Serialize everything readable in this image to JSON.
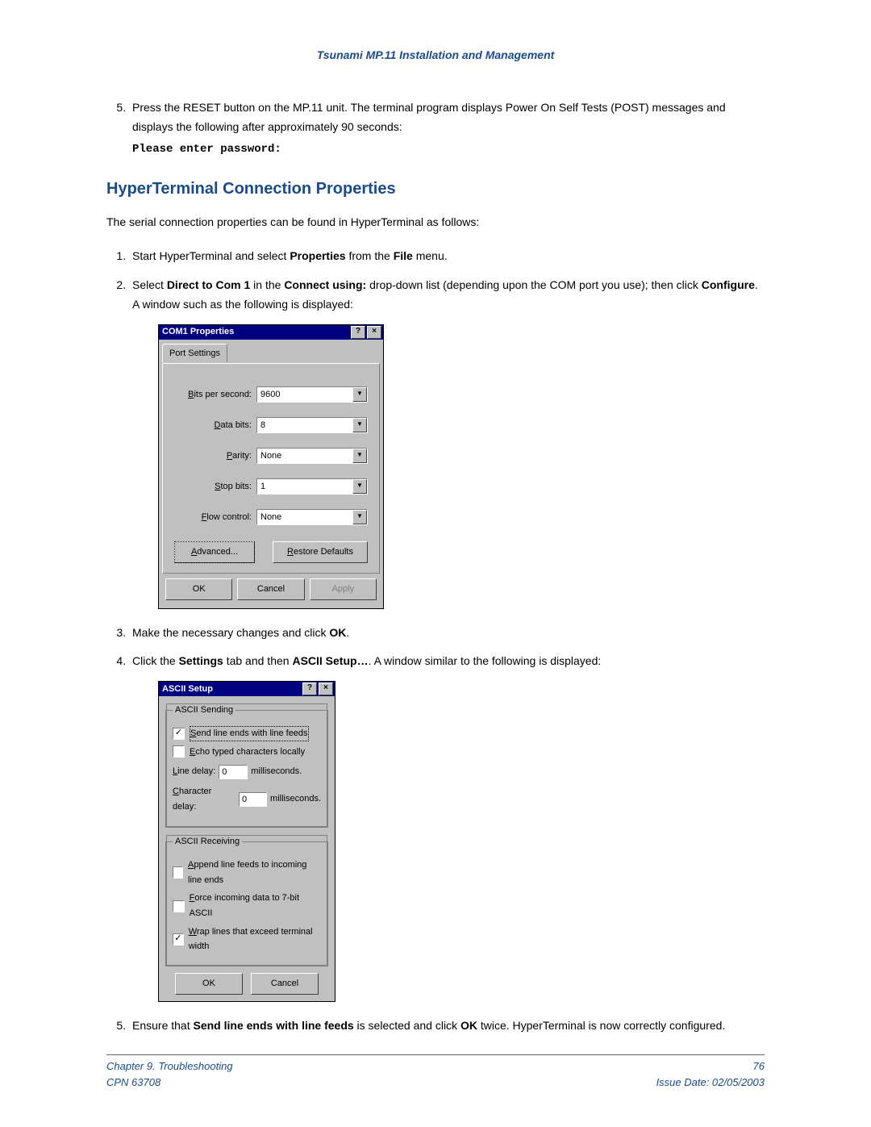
{
  "header": {
    "title": "Tsunami MP.11 Installation and Management"
  },
  "step5a": {
    "text_a": "Press the RESET button on the MP.11 unit.  The terminal program displays Power On Self Tests (POST) messages and displays the following after approximately 90 seconds:",
    "mono": "Please enter password:"
  },
  "section_heading": "HyperTerminal Connection Properties",
  "lead": "The serial connection properties can be found in HyperTerminal as follows:",
  "step1": {
    "a": "Start HyperTerminal and select ",
    "b": "Properties",
    "c": " from the ",
    "d": "File",
    "e": " menu."
  },
  "step2": {
    "a": "Select ",
    "b": "Direct to Com 1",
    "c": " in the ",
    "d": "Connect using:",
    "e": " drop-down list (depending upon the COM port you use); then click ",
    "f": "Configure",
    "g": ".  A window such as the following is displayed:"
  },
  "dlg1": {
    "title": "COM1 Properties",
    "help_glyph": "?",
    "close_glyph": "×",
    "tab": "Port Settings",
    "fields": {
      "bps": {
        "label": "Bits per second:",
        "value": "9600"
      },
      "databits": {
        "label": "Data bits:",
        "value": "8"
      },
      "parity": {
        "label": "Parity:",
        "value": "None"
      },
      "stopbits": {
        "label": "Stop bits:",
        "value": "1"
      },
      "flow": {
        "label": "Flow control:",
        "value": "None"
      }
    },
    "advanced": "Advanced...",
    "restore": "Restore Defaults",
    "ok": "OK",
    "cancel": "Cancel",
    "apply": "Apply",
    "drop_glyph": "▼"
  },
  "step3": {
    "a": "Make the necessary changes and click ",
    "b": "OK",
    "c": "."
  },
  "step4": {
    "a": "Click the ",
    "b": "Settings",
    "c": " tab and then ",
    "d": "ASCII Setup…",
    "e": ".  A window similar to the following is displayed:"
  },
  "dlg2": {
    "title": "ASCII Setup",
    "help_glyph": "?",
    "close_glyph": "×",
    "sending_legend": "ASCII Sending",
    "receiving_legend": "ASCII Receiving",
    "check_glyph": "✓",
    "opt_send": "Send line ends with line feeds",
    "opt_echo": "Echo typed characters locally",
    "line_delay_label": "Line delay:",
    "line_delay_value": "0",
    "ms": "milliseconds.",
    "char_delay_label": "Character delay:",
    "char_delay_value": "0",
    "ms2": "milliseconds.",
    "opt_append": "Append line feeds to incoming line ends",
    "opt_force": "Force incoming data to 7-bit ASCII",
    "opt_wrap": "Wrap lines that exceed terminal width",
    "ok": "OK",
    "cancel": "Cancel"
  },
  "step5b": {
    "a": "Ensure that ",
    "b": "Send line ends with line feeds",
    "c": " is selected and click ",
    "d": "OK",
    "e": " twice.  HyperTerminal is now correctly configured."
  },
  "footer": {
    "chapter": "Chapter 9.  Troubleshooting",
    "pageno": "76",
    "cpn": "CPN 63708",
    "issue": "Issue Date:  02/05/2003"
  }
}
